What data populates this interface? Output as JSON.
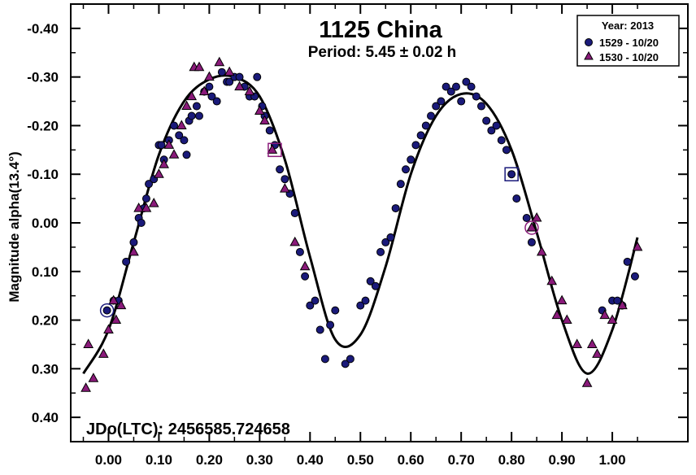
{
  "chart_data": {
    "type": "scatter",
    "title": "1125 China",
    "subtitle": "Period: 5.45 ± 0.02 h",
    "xlabel": "",
    "ylabel": "Magnitude alpha(13.4°)",
    "xlim": [
      -0.075,
      1.15
    ],
    "ylim": [
      0.45,
      -0.45
    ],
    "y_reversed": true,
    "grid": false,
    "x_ticks": [
      0.0,
      0.1,
      0.2,
      0.3,
      0.4,
      0.5,
      0.6,
      0.7,
      0.8,
      0.9,
      1.0
    ],
    "x_tick_labels": [
      "0.00",
      "0.10",
      "0.20",
      "0.30",
      "0.40",
      "0.50",
      "0.60",
      "0.70",
      "0.80",
      "0.90",
      "1.00"
    ],
    "y_ticks": [
      -0.4,
      -0.3,
      -0.2,
      -0.1,
      0.0,
      0.1,
      0.2,
      0.3,
      0.4
    ],
    "y_tick_labels": [
      "-0.40",
      "-0.30",
      "-0.20",
      "-0.10",
      "0.00",
      "0.10",
      "0.20",
      "0.30",
      "0.40"
    ],
    "annotation": "JDo(LTC): 2456585.724658",
    "legend": {
      "placement": "top-right",
      "title": "Year: 2013",
      "entries": [
        "1529 - 10/20",
        "1530 - 10/20"
      ]
    },
    "colors": {
      "series1": "#1a1a7a",
      "series2": "#8a1a7a",
      "stroke": "#000000"
    },
    "fit_curve": {
      "x": [
        -0.05,
        0.0,
        0.05,
        0.1,
        0.15,
        0.2,
        0.25,
        0.3,
        0.35,
        0.4,
        0.45,
        0.5,
        0.55,
        0.6,
        0.65,
        0.7,
        0.75,
        0.8,
        0.85,
        0.9,
        0.95,
        1.0,
        1.05
      ],
      "y": [
        0.31,
        0.22,
        0.04,
        -0.14,
        -0.25,
        -0.295,
        -0.3,
        -0.26,
        -0.13,
        0.07,
        0.24,
        0.23,
        0.09,
        -0.1,
        -0.22,
        -0.265,
        -0.245,
        -0.15,
        0.02,
        0.2,
        0.31,
        0.22,
        0.03
      ]
    },
    "series": [
      {
        "name": "1529 - 10/20",
        "marker": "circle",
        "points": [
          [
            -0.003,
            0.18
          ],
          [
            0.01,
            0.16
          ],
          [
            0.02,
            0.16
          ],
          [
            0.035,
            0.08
          ],
          [
            0.05,
            0.04
          ],
          [
            0.06,
            -0.01
          ],
          [
            0.065,
            0.0
          ],
          [
            0.07,
            -0.03
          ],
          [
            0.075,
            -0.05
          ],
          [
            0.08,
            -0.08
          ],
          [
            0.09,
            -0.09
          ],
          [
            0.1,
            -0.16
          ],
          [
            0.105,
            -0.16
          ],
          [
            0.11,
            -0.13
          ],
          [
            0.12,
            -0.17
          ],
          [
            0.13,
            -0.2
          ],
          [
            0.14,
            -0.18
          ],
          [
            0.15,
            -0.17
          ],
          [
            0.155,
            -0.14
          ],
          [
            0.16,
            -0.21
          ],
          [
            0.165,
            -0.22
          ],
          [
            0.175,
            -0.24
          ],
          [
            0.18,
            -0.22
          ],
          [
            0.19,
            -0.27
          ],
          [
            0.2,
            -0.28
          ],
          [
            0.205,
            -0.26
          ],
          [
            0.215,
            -0.25
          ],
          [
            0.225,
            -0.31
          ],
          [
            0.235,
            -0.29
          ],
          [
            0.24,
            -0.29
          ],
          [
            0.25,
            -0.3
          ],
          [
            0.26,
            -0.3
          ],
          [
            0.27,
            -0.28
          ],
          [
            0.28,
            -0.26
          ],
          [
            0.29,
            -0.26
          ],
          [
            0.295,
            -0.3
          ],
          [
            0.305,
            -0.24
          ],
          [
            0.31,
            -0.22
          ],
          [
            0.32,
            -0.19
          ],
          [
            0.33,
            -0.16
          ],
          [
            0.34,
            -0.11
          ],
          [
            0.35,
            -0.09
          ],
          [
            0.36,
            -0.06
          ],
          [
            0.37,
            -0.02
          ],
          [
            0.38,
            0.06
          ],
          [
            0.39,
            0.11
          ],
          [
            0.4,
            0.17
          ],
          [
            0.41,
            0.16
          ],
          [
            0.42,
            0.22
          ],
          [
            0.43,
            0.28
          ],
          [
            0.44,
            0.21
          ],
          [
            0.45,
            0.18
          ],
          [
            0.47,
            0.29
          ],
          [
            0.48,
            0.28
          ],
          [
            0.5,
            0.17
          ],
          [
            0.51,
            0.16
          ],
          [
            0.52,
            0.12
          ],
          [
            0.53,
            0.13
          ],
          [
            0.54,
            0.06
          ],
          [
            0.55,
            0.04
          ],
          [
            0.56,
            0.03
          ],
          [
            0.57,
            -0.03
          ],
          [
            0.58,
            -0.08
          ],
          [
            0.59,
            -0.11
          ],
          [
            0.6,
            -0.13
          ],
          [
            0.61,
            -0.16
          ],
          [
            0.62,
            -0.18
          ],
          [
            0.63,
            -0.2
          ],
          [
            0.64,
            -0.22
          ],
          [
            0.65,
            -0.24
          ],
          [
            0.66,
            -0.25
          ],
          [
            0.67,
            -0.28
          ],
          [
            0.68,
            -0.27
          ],
          [
            0.69,
            -0.28
          ],
          [
            0.7,
            -0.25
          ],
          [
            0.71,
            -0.29
          ],
          [
            0.72,
            -0.28
          ],
          [
            0.73,
            -0.26
          ],
          [
            0.74,
            -0.24
          ],
          [
            0.75,
            -0.21
          ],
          [
            0.76,
            -0.19
          ],
          [
            0.77,
            -0.2
          ],
          [
            0.78,
            -0.17
          ],
          [
            0.79,
            -0.15
          ],
          [
            0.8,
            -0.1
          ],
          [
            0.81,
            -0.05
          ],
          [
            0.83,
            -0.01
          ],
          [
            0.84,
            0.04
          ],
          [
            0.98,
            0.18
          ],
          [
            1.0,
            0.16
          ],
          [
            1.01,
            0.16
          ],
          [
            1.02,
            0.17
          ],
          [
            1.03,
            0.08
          ],
          [
            1.045,
            0.11
          ]
        ]
      },
      {
        "name": "1530 - 10/20",
        "marker": "triangle",
        "points": [
          [
            -0.045,
            0.34
          ],
          [
            -0.04,
            0.25
          ],
          [
            -0.03,
            0.32
          ],
          [
            -0.01,
            0.27
          ],
          [
            0.0,
            0.22
          ],
          [
            0.01,
            0.16
          ],
          [
            0.015,
            0.2
          ],
          [
            0.025,
            0.17
          ],
          [
            0.05,
            0.06
          ],
          [
            0.06,
            -0.03
          ],
          [
            0.075,
            -0.03
          ],
          [
            0.09,
            -0.04
          ],
          [
            0.1,
            -0.1
          ],
          [
            0.11,
            -0.12
          ],
          [
            0.12,
            -0.16
          ],
          [
            0.13,
            -0.14
          ],
          [
            0.145,
            -0.2
          ],
          [
            0.155,
            -0.24
          ],
          [
            0.165,
            -0.26
          ],
          [
            0.17,
            -0.32
          ],
          [
            0.18,
            -0.32
          ],
          [
            0.19,
            -0.27
          ],
          [
            0.2,
            -0.3
          ],
          [
            0.22,
            -0.33
          ],
          [
            0.24,
            -0.31
          ],
          [
            0.26,
            -0.28
          ],
          [
            0.28,
            -0.27
          ],
          [
            0.3,
            -0.23
          ],
          [
            0.31,
            -0.21
          ],
          [
            0.325,
            -0.15
          ],
          [
            0.35,
            -0.07
          ],
          [
            0.37,
            0.04
          ],
          [
            0.39,
            0.09
          ],
          [
            0.84,
            0.01
          ],
          [
            0.85,
            -0.01
          ],
          [
            0.86,
            0.06
          ],
          [
            0.88,
            0.12
          ],
          [
            0.89,
            0.19
          ],
          [
            0.9,
            0.16
          ],
          [
            0.91,
            0.2
          ],
          [
            0.93,
            0.25
          ],
          [
            0.95,
            0.33
          ],
          [
            0.96,
            0.25
          ],
          [
            0.97,
            0.27
          ],
          [
            0.985,
            0.19
          ],
          [
            1.0,
            0.2
          ],
          [
            1.02,
            0.17
          ],
          [
            1.05,
            0.05
          ]
        ]
      }
    ],
    "highlighted": [
      {
        "marker": "open-circle",
        "x": -0.003,
        "y": 0.18
      },
      {
        "marker": "open-circle",
        "x": 0.84,
        "y": 0.01
      },
      {
        "marker": "open-square",
        "x": 0.33,
        "y": -0.15
      },
      {
        "marker": "open-square",
        "x": 0.8,
        "y": -0.1
      }
    ]
  }
}
